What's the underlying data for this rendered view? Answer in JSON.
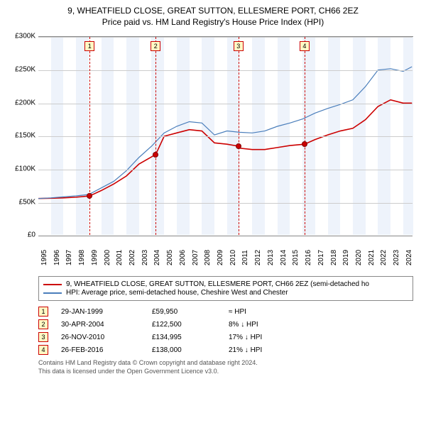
{
  "title": {
    "line1": "9, WHEATFIELD CLOSE, GREAT SUTTON, ELLESMERE PORT, CH66 2EZ",
    "line2": "Price paid vs. HM Land Registry's House Price Index (HPI)"
  },
  "chart": {
    "type": "line",
    "background_color": "#ffffff",
    "band_color": "#eef3fb",
    "grid_color": "#cccccc",
    "x_range": [
      1995,
      2024.8
    ],
    "y_range": [
      0,
      300000
    ],
    "y_ticks": [
      0,
      50000,
      100000,
      150000,
      200000,
      250000,
      300000
    ],
    "y_tick_labels": [
      "£0",
      "£50K",
      "£100K",
      "£150K",
      "£200K",
      "£250K",
      "£300K"
    ],
    "x_ticks": [
      1995,
      1996,
      1997,
      1998,
      1999,
      2000,
      2001,
      2002,
      2003,
      2004,
      2005,
      2006,
      2007,
      2008,
      2009,
      2010,
      2011,
      2012,
      2013,
      2014,
      2015,
      2016,
      2017,
      2018,
      2019,
      2020,
      2021,
      2022,
      2023,
      2024
    ],
    "label_fontsize": 10,
    "series": [
      {
        "key": "price_paid",
        "color": "#cc0000",
        "width": 1.6,
        "data": [
          [
            1995,
            56000
          ],
          [
            1996,
            56500
          ],
          [
            1997,
            57000
          ],
          [
            1998,
            58000
          ],
          [
            1999.08,
            59950
          ],
          [
            2000,
            68000
          ],
          [
            2001,
            78000
          ],
          [
            2002,
            90000
          ],
          [
            2003,
            108000
          ],
          [
            2004.33,
            122500
          ],
          [
            2005,
            150000
          ],
          [
            2006,
            155000
          ],
          [
            2007,
            160000
          ],
          [
            2008,
            158000
          ],
          [
            2009,
            140000
          ],
          [
            2010,
            138000
          ],
          [
            2010.9,
            134995
          ],
          [
            2011,
            132000
          ],
          [
            2012,
            130000
          ],
          [
            2013,
            130000
          ],
          [
            2014,
            133000
          ],
          [
            2015,
            136000
          ],
          [
            2016.16,
            138000
          ],
          [
            2017,
            145000
          ],
          [
            2018,
            152000
          ],
          [
            2019,
            158000
          ],
          [
            2020,
            162000
          ],
          [
            2021,
            175000
          ],
          [
            2022,
            195000
          ],
          [
            2023,
            205000
          ],
          [
            2024,
            200000
          ],
          [
            2024.7,
            200000
          ]
        ]
      },
      {
        "key": "hpi",
        "color": "#4a7ebb",
        "width": 1.2,
        "data": [
          [
            1995,
            56000
          ],
          [
            1996,
            57000
          ],
          [
            1997,
            58500
          ],
          [
            1998,
            60000
          ],
          [
            1999,
            62000
          ],
          [
            2000,
            72000
          ],
          [
            2001,
            82000
          ],
          [
            2002,
            98000
          ],
          [
            2003,
            118000
          ],
          [
            2004,
            135000
          ],
          [
            2005,
            155000
          ],
          [
            2006,
            165000
          ],
          [
            2007,
            172000
          ],
          [
            2008,
            170000
          ],
          [
            2009,
            152000
          ],
          [
            2010,
            158000
          ],
          [
            2011,
            156000
          ],
          [
            2012,
            155000
          ],
          [
            2013,
            158000
          ],
          [
            2014,
            165000
          ],
          [
            2015,
            170000
          ],
          [
            2016,
            176000
          ],
          [
            2017,
            185000
          ],
          [
            2018,
            192000
          ],
          [
            2019,
            198000
          ],
          [
            2020,
            205000
          ],
          [
            2021,
            225000
          ],
          [
            2022,
            250000
          ],
          [
            2023,
            252000
          ],
          [
            2024,
            248000
          ],
          [
            2024.7,
            255000
          ]
        ]
      }
    ],
    "sale_markers": [
      {
        "n": "1",
        "x": 1999.08,
        "y": 59950
      },
      {
        "n": "2",
        "x": 2004.33,
        "y": 122500
      },
      {
        "n": "3",
        "x": 2010.9,
        "y": 134995
      },
      {
        "n": "4",
        "x": 2016.16,
        "y": 138000
      }
    ]
  },
  "legend": {
    "row1": {
      "color": "#cc0000",
      "label": "9, WHEATFIELD CLOSE, GREAT SUTTON, ELLESMERE PORT, CH66 2EZ (semi-detached ho"
    },
    "row2": {
      "color": "#4a7ebb",
      "label": "HPI: Average price, semi-detached house, Cheshire West and Chester"
    }
  },
  "sales_table": [
    {
      "n": "1",
      "date": "29-JAN-1999",
      "price": "£59,950",
      "diff": "≈ HPI"
    },
    {
      "n": "2",
      "date": "30-APR-2004",
      "price": "£122,500",
      "diff": "8% ↓ HPI"
    },
    {
      "n": "3",
      "date": "26-NOV-2010",
      "price": "£134,995",
      "diff": "17% ↓ HPI"
    },
    {
      "n": "4",
      "date": "26-FEB-2016",
      "price": "£138,000",
      "diff": "21% ↓ HPI"
    }
  ],
  "footer": {
    "line1": "Contains HM Land Registry data © Crown copyright and database right 2024.",
    "line2": "This data is licensed under the Open Government Licence v3.0."
  }
}
